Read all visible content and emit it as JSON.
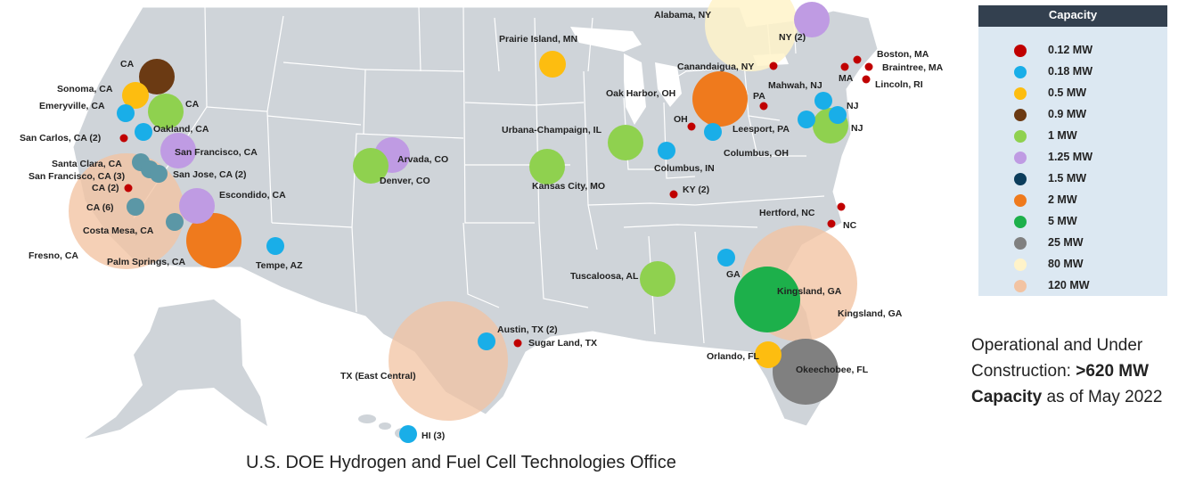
{
  "legend": {
    "title": "Capacity",
    "items": [
      {
        "label": "0.12 MW",
        "color": "#c00000"
      },
      {
        "label": "0.18 MW",
        "color": "#19aee8"
      },
      {
        "label": "0.5 MW",
        "color": "#fdbd10"
      },
      {
        "label": "0.9 MW",
        "color": "#6b3a13"
      },
      {
        "label": "1 MW",
        "color": "#8fd14f"
      },
      {
        "label": "1.25 MW",
        "color": "#bf9be3"
      },
      {
        "label": "1.5 MW",
        "color": "#0c3d5c"
      },
      {
        "label": "2 MW",
        "color": "#ef7a1d"
      },
      {
        "label": "5 MW",
        "color": "#1db04b"
      },
      {
        "label": "25 MW",
        "color": "#808080"
      },
      {
        "label": "80 MW",
        "color": "#fff3c9"
      },
      {
        "label": "120 MW",
        "color": "#f2c3a2"
      }
    ]
  },
  "summary": {
    "line1": "Operational and Under",
    "line2_prefix": "Construction: ",
    "line2_bold": ">620 MW",
    "line3_bold": "Capacity",
    "line3_suffix": " as of May 2022"
  },
  "footer": "U.S. DOE Hydrogen and Fuel Cell Technologies Office",
  "sites": [
    "Alabama, NY",
    "NY (2)",
    "Prairie Island, MN",
    "Boston, MA",
    "Braintree, MA",
    "MA",
    "Canandaigua, NY",
    "Lincoln, RI",
    "Mahwah, NJ",
    "NJ",
    "NJ",
    "PA",
    "Leesport, PA",
    "Oak Harbor, OH",
    "OH",
    "Columbus, OH",
    "Columbus, IN",
    "Urbana-Champaign, IL",
    "Kansas City, MO",
    "KY (2)",
    "Hertford, NC",
    "NC",
    "Tuscaloosa, AL",
    "GA",
    "Kingsland, GA",
    "Kingsland, GA",
    "Orlando, FL",
    "Okeechobee, FL",
    "Austin, TX (2)",
    "Sugar Land, TX",
    "TX (East Central)",
    "HI (3)",
    "Tempe, AZ",
    "Arvada, CO",
    "Denver, CO",
    "CA",
    "Sonoma, CA",
    "Emeryville, CA",
    "CA",
    "Oakland, CA",
    "San Carlos, CA (2)",
    "San Francisco, CA",
    "Santa Clara, CA",
    "San Francisco, CA (3)",
    "San Jose, CA (2)",
    "CA (2)",
    "CA (6)",
    "Escondido, CA",
    "Costa Mesa, CA",
    "Fresno, CA",
    "Palm Springs, CA"
  ]
}
